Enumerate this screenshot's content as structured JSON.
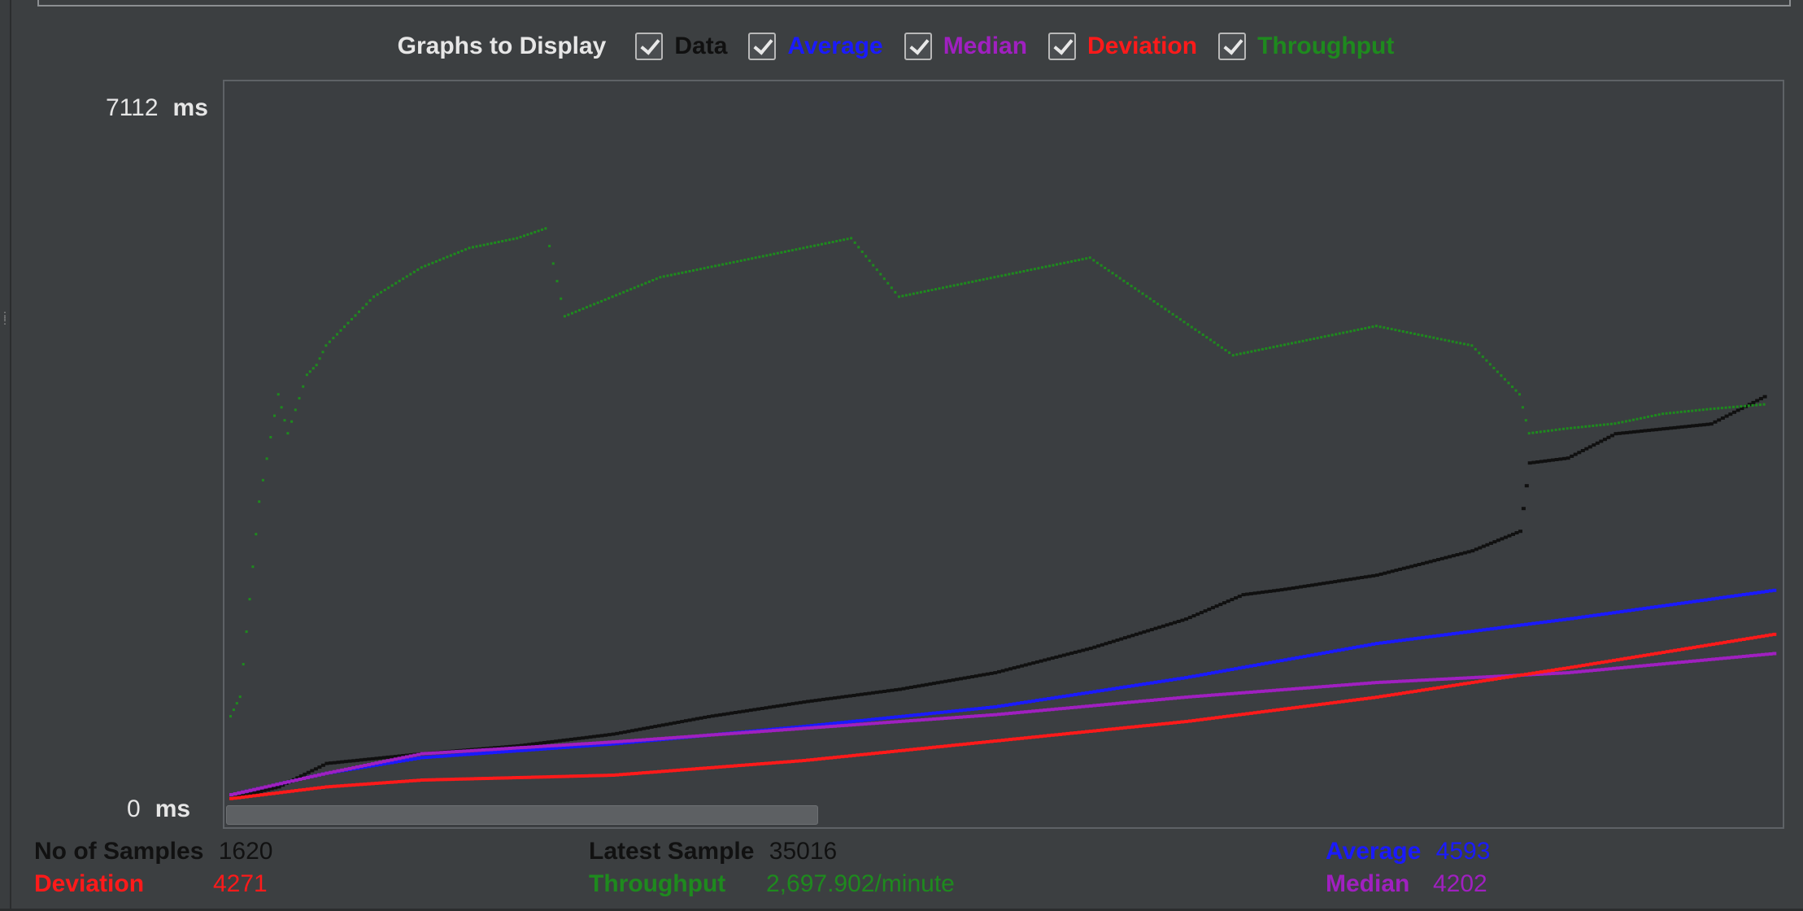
{
  "controls": {
    "title": "Graphs to Display",
    "toggles": [
      {
        "label": "Data",
        "checked": true,
        "color": "#101010"
      },
      {
        "label": "Average",
        "checked": true,
        "color": "#1a1aff"
      },
      {
        "label": "Median",
        "checked": true,
        "color": "#a020c0"
      },
      {
        "label": "Deviation",
        "checked": true,
        "color": "#ff1a1a"
      },
      {
        "label": "Throughput",
        "checked": true,
        "color": "#1e8a1e"
      }
    ]
  },
  "chart_data": {
    "type": "scatter",
    "y_max_label": "7112",
    "y_min_label": "0",
    "y_unit": "ms",
    "ylim": [
      0,
      7112
    ],
    "x_range": [
      0,
      1620
    ],
    "series": [
      {
        "name": "Data",
        "color": "#101010",
        "points": [
          [
            0,
            60
          ],
          [
            50,
            180
          ],
          [
            100,
            420
          ],
          [
            200,
            520
          ],
          [
            300,
            600
          ],
          [
            400,
            720
          ],
          [
            500,
            900
          ],
          [
            600,
            1050
          ],
          [
            700,
            1180
          ],
          [
            800,
            1350
          ],
          [
            900,
            1600
          ],
          [
            1000,
            1900
          ],
          [
            1060,
            2150
          ],
          [
            1100,
            2200
          ],
          [
            1200,
            2350
          ],
          [
            1300,
            2600
          ],
          [
            1350,
            2800
          ],
          [
            1360,
            3500
          ],
          [
            1400,
            3550
          ],
          [
            1450,
            3800
          ],
          [
            1500,
            3850
          ],
          [
            1550,
            3900
          ],
          [
            1610,
            4200
          ]
        ]
      },
      {
        "name": "Average",
        "color": "#1a1aff",
        "points": [
          [
            0,
            100
          ],
          [
            100,
            320
          ],
          [
            200,
            480
          ],
          [
            400,
            620
          ],
          [
            600,
            800
          ],
          [
            800,
            1000
          ],
          [
            1000,
            1300
          ],
          [
            1200,
            1650
          ],
          [
            1400,
            1900
          ],
          [
            1620,
            2200
          ]
        ]
      },
      {
        "name": "Median",
        "color": "#a020c0",
        "points": [
          [
            0,
            100
          ],
          [
            100,
            320
          ],
          [
            200,
            520
          ],
          [
            400,
            640
          ],
          [
            600,
            780
          ],
          [
            800,
            920
          ],
          [
            1000,
            1100
          ],
          [
            1200,
            1250
          ],
          [
            1400,
            1350
          ],
          [
            1620,
            1550
          ]
        ]
      },
      {
        "name": "Deviation",
        "color": "#ff1a1a",
        "points": [
          [
            0,
            60
          ],
          [
            100,
            180
          ],
          [
            200,
            250
          ],
          [
            400,
            300
          ],
          [
            600,
            450
          ],
          [
            800,
            650
          ],
          [
            1000,
            850
          ],
          [
            1200,
            1100
          ],
          [
            1400,
            1400
          ],
          [
            1620,
            1750
          ]
        ]
      },
      {
        "name": "Throughput",
        "color": "#1e8a1e",
        "points": [
          [
            0,
            900
          ],
          [
            10,
            1100
          ],
          [
            20,
            2100
          ],
          [
            30,
            3100
          ],
          [
            50,
            4200
          ],
          [
            60,
            3800
          ],
          [
            80,
            4400
          ],
          [
            90,
            4500
          ],
          [
            100,
            4700
          ],
          [
            150,
            5200
          ],
          [
            200,
            5500
          ],
          [
            250,
            5700
          ],
          [
            300,
            5800
          ],
          [
            330,
            5900
          ],
          [
            350,
            5000
          ],
          [
            400,
            5200
          ],
          [
            450,
            5400
          ],
          [
            500,
            5500
          ],
          [
            550,
            5600
          ],
          [
            600,
            5700
          ],
          [
            650,
            5800
          ],
          [
            700,
            5200
          ],
          [
            750,
            5300
          ],
          [
            800,
            5400
          ],
          [
            850,
            5500
          ],
          [
            900,
            5600
          ],
          [
            1050,
            4600
          ],
          [
            1100,
            4700
          ],
          [
            1150,
            4800
          ],
          [
            1200,
            4900
          ],
          [
            1300,
            4700
          ],
          [
            1350,
            4200
          ],
          [
            1360,
            3800
          ],
          [
            1400,
            3850
          ],
          [
            1450,
            3900
          ],
          [
            1500,
            4000
          ],
          [
            1550,
            4050
          ],
          [
            1610,
            4100
          ]
        ]
      }
    ]
  },
  "stats": {
    "samples_label": "No of Samples",
    "samples_value": "1620",
    "latest_label": "Latest Sample",
    "latest_value": "35016",
    "average_label": "Average",
    "average_value": "4593",
    "deviation_label": "Deviation",
    "deviation_value": "4271",
    "throughput_label": "Throughput",
    "throughput_value": "2,697.902/minute",
    "median_label": "Median",
    "median_value": "4202"
  }
}
